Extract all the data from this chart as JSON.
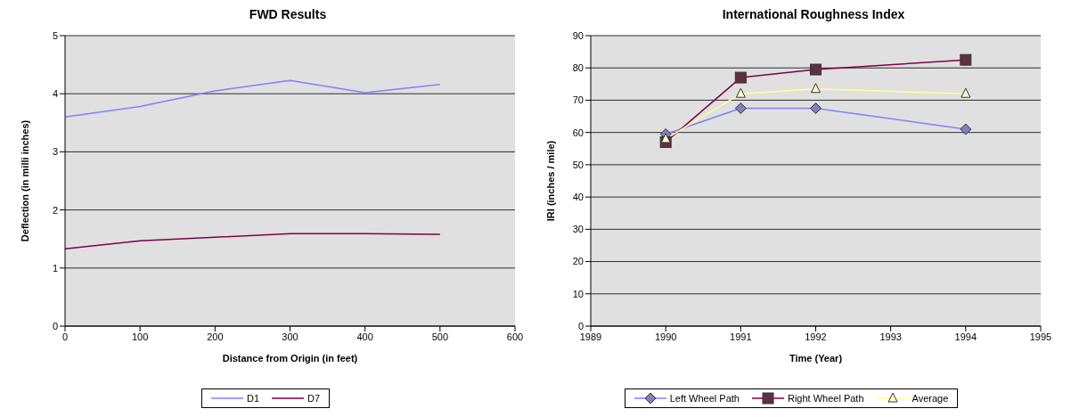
{
  "chart_data": [
    {
      "type": "line",
      "title": "FWD Results",
      "xlabel": "Distance from Origin (in feet)",
      "ylabel": "Deflection (in milli inches)",
      "x": [
        0,
        100,
        200,
        300,
        400,
        500
      ],
      "xlim": [
        0,
        600
      ],
      "xticks": [
        0,
        100,
        200,
        300,
        400,
        500,
        600
      ],
      "ylim": [
        0,
        5
      ],
      "yticks": [
        0,
        1,
        2,
        3,
        4,
        5
      ],
      "grid": "y",
      "legend": "bottom",
      "marker": "none",
      "series": [
        {
          "name": "D1",
          "color": "#8080ff",
          "values": [
            3.6,
            3.78,
            4.05,
            4.23,
            4.02,
            4.16
          ]
        },
        {
          "name": "D7",
          "color": "#800040",
          "values": [
            1.33,
            1.47,
            1.53,
            1.59,
            1.59,
            1.58
          ]
        }
      ]
    },
    {
      "type": "line",
      "title": "International Roughness Index",
      "xlabel": "Time (Year)",
      "ylabel": "IRI (inches / mile)",
      "x": [
        1990,
        1991,
        1992,
        1994
      ],
      "xlim": [
        1989,
        1995
      ],
      "xticks": [
        1989,
        1990,
        1991,
        1992,
        1993,
        1994,
        1995
      ],
      "ylim": [
        0,
        90
      ],
      "yticks": [
        0,
        10,
        20,
        30,
        40,
        50,
        60,
        70,
        80,
        90
      ],
      "grid": "y",
      "legend": "bottom",
      "series": [
        {
          "name": "Left Wheel Path",
          "color": "#8080ff",
          "marker": "diamond",
          "values": [
            59.5,
            67.5,
            67.5,
            61
          ]
        },
        {
          "name": "Right Wheel Path",
          "color": "#800040",
          "marker": "square",
          "values": [
            57,
            77,
            79.5,
            82.5
          ]
        },
        {
          "name": "Average",
          "color": "#ffff99",
          "marker": "triangle",
          "values": [
            58,
            72,
            73.5,
            72
          ]
        }
      ]
    }
  ]
}
